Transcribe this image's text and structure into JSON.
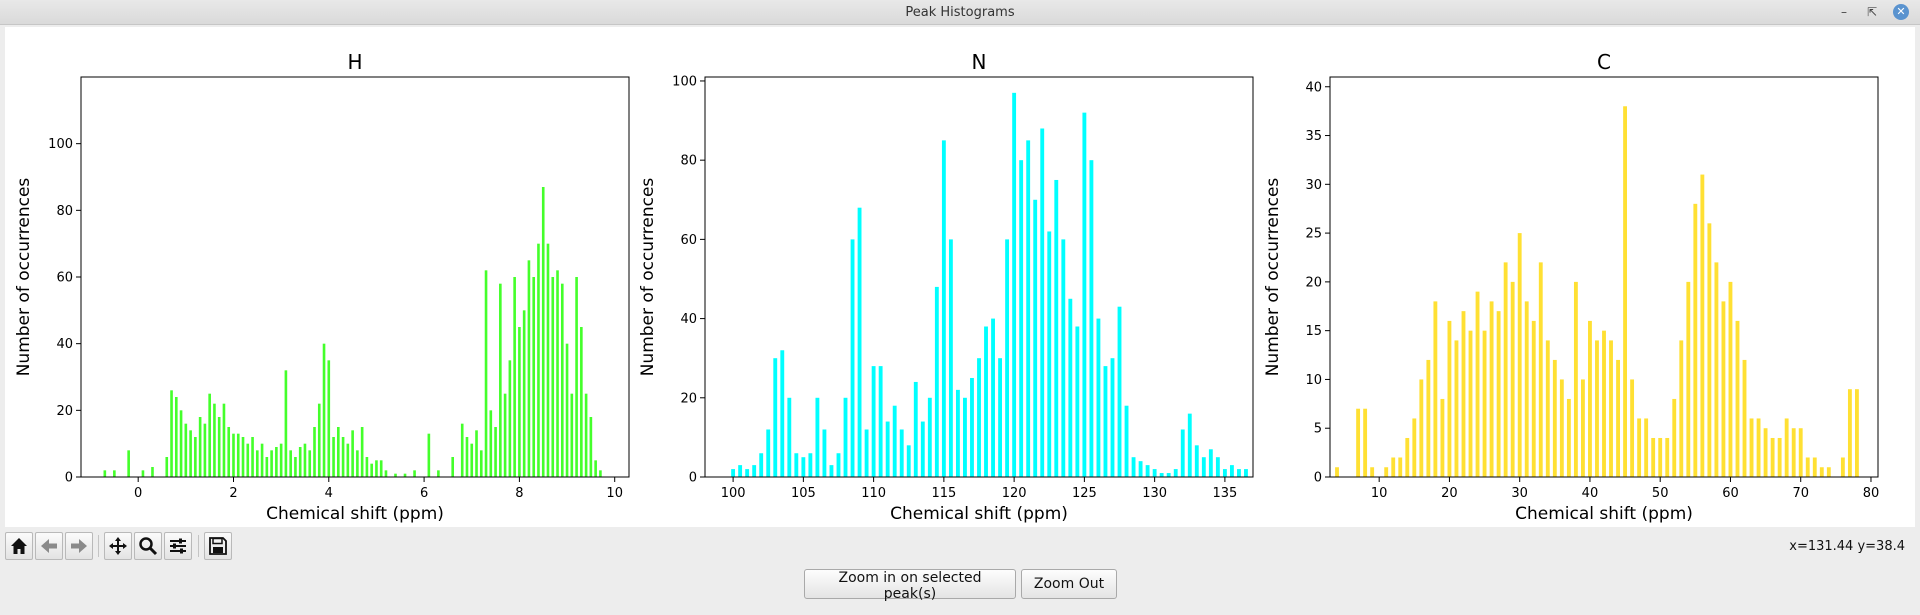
{
  "window": {
    "title": "Peak Histograms"
  },
  "toolbar": {
    "buttons": [
      "home-icon",
      "back-arrow-icon",
      "forward-arrow-icon",
      "pan-icon",
      "zoom-icon",
      "configure-subplots-icon",
      "save-icon"
    ],
    "coords": "x=131.44 y=38.4"
  },
  "actions": {
    "zoom_in_label": "Zoom in on selected peak(s)",
    "zoom_out_label": "Zoom Out"
  },
  "chart_data": [
    {
      "type": "bar",
      "title": "H",
      "xlabel": "Chemical shift (ppm)",
      "ylabel": "Number of occurrences",
      "color": "#44ff2b",
      "xlim": [
        -1.2,
        10.3
      ],
      "ylim": [
        0,
        120
      ],
      "xticks": [
        0,
        2,
        4,
        6,
        8,
        10
      ],
      "yticks": [
        0,
        20,
        40,
        60,
        80,
        100
      ],
      "grid": false,
      "x": [
        -0.7,
        -0.5,
        -0.2,
        0.1,
        0.3,
        0.6,
        0.7,
        0.8,
        0.9,
        1.0,
        1.1,
        1.2,
        1.3,
        1.4,
        1.5,
        1.6,
        1.7,
        1.8,
        1.9,
        2.0,
        2.1,
        2.2,
        2.3,
        2.4,
        2.5,
        2.6,
        2.7,
        2.8,
        2.9,
        3.0,
        3.1,
        3.2,
        3.3,
        3.4,
        3.5,
        3.6,
        3.7,
        3.8,
        3.9,
        4.0,
        4.1,
        4.2,
        4.3,
        4.4,
        4.5,
        4.6,
        4.7,
        4.8,
        4.9,
        5.0,
        5.1,
        5.2,
        5.4,
        5.6,
        5.8,
        6.1,
        6.3,
        6.6,
        6.8,
        6.9,
        7.0,
        7.1,
        7.2,
        7.3,
        7.4,
        7.5,
        7.6,
        7.7,
        7.8,
        7.9,
        8.0,
        8.1,
        8.2,
        8.3,
        8.4,
        8.5,
        8.6,
        8.7,
        8.8,
        8.9,
        9.0,
        9.1,
        9.2,
        9.3,
        9.4,
        9.5,
        9.6,
        9.7
      ],
      "values": [
        2,
        2,
        8,
        2,
        3,
        6,
        26,
        24,
        20,
        16,
        14,
        12,
        18,
        16,
        25,
        22,
        18,
        22,
        15,
        13,
        13,
        12,
        10,
        12,
        8,
        10,
        6,
        8,
        9,
        10,
        32,
        8,
        6,
        9,
        10,
        8,
        15,
        22,
        40,
        35,
        12,
        15,
        12,
        10,
        14,
        8,
        15,
        6,
        4,
        5,
        5,
        2,
        1,
        1,
        2,
        13,
        2,
        6,
        16,
        12,
        10,
        14,
        8,
        62,
        20,
        15,
        58,
        25,
        35,
        60,
        45,
        50,
        65,
        60,
        70,
        87,
        70,
        60,
        62,
        58,
        40,
        25,
        60,
        45,
        25,
        18,
        5,
        2
      ]
    },
    {
      "type": "bar",
      "title": "N",
      "xlabel": "Chemical shift (ppm)",
      "ylabel": "Number of occurrences",
      "color": "#00ffff",
      "xlim": [
        98,
        137
      ],
      "ylim": [
        0,
        101
      ],
      "xticks": [
        100,
        105,
        110,
        115,
        120,
        125,
        130,
        135
      ],
      "yticks": [
        0,
        20,
        40,
        60,
        80,
        100
      ],
      "grid": false,
      "x": [
        100.0,
        100.5,
        101.0,
        101.5,
        102.0,
        102.5,
        103.0,
        103.5,
        104.0,
        104.5,
        105.0,
        105.5,
        106.0,
        106.5,
        107.0,
        107.5,
        108.0,
        108.5,
        109.0,
        109.5,
        110.0,
        110.5,
        111.0,
        111.5,
        112.0,
        112.5,
        113.0,
        113.5,
        114.0,
        114.5,
        115.0,
        115.5,
        116.0,
        116.5,
        117.0,
        117.5,
        118.0,
        118.5,
        119.0,
        119.5,
        120.0,
        120.5,
        121.0,
        121.5,
        122.0,
        122.5,
        123.0,
        123.5,
        124.0,
        124.5,
        125.0,
        125.5,
        126.0,
        126.5,
        127.0,
        127.5,
        128.0,
        128.5,
        129.0,
        129.5,
        130.0,
        130.5,
        131.0,
        131.5,
        132.0,
        132.5,
        133.0,
        133.5,
        134.0,
        134.5,
        135.0,
        135.5,
        136.0,
        136.5
      ],
      "values": [
        2,
        3,
        2,
        3,
        6,
        12,
        30,
        32,
        20,
        6,
        5,
        6,
        20,
        12,
        3,
        6,
        20,
        60,
        68,
        12,
        28,
        28,
        14,
        18,
        12,
        8,
        24,
        14,
        20,
        48,
        85,
        60,
        22,
        20,
        25,
        30,
        38,
        40,
        30,
        60,
        97,
        80,
        85,
        70,
        88,
        62,
        75,
        60,
        45,
        38,
        92,
        80,
        40,
        28,
        30,
        43,
        18,
        5,
        4,
        3,
        2,
        1,
        1,
        2,
        12,
        16,
        8,
        5,
        7,
        5,
        2,
        3,
        2,
        2
      ]
    },
    {
      "type": "bar",
      "title": "C",
      "xlabel": "Chemical shift (ppm)",
      "ylabel": "Number of occurrences",
      "color": "#ffe033",
      "xlim": [
        3,
        81
      ],
      "ylim": [
        0,
        41
      ],
      "xticks": [
        10,
        20,
        30,
        40,
        50,
        60,
        70,
        80
      ],
      "yticks": [
        0,
        5,
        10,
        15,
        20,
        25,
        30,
        35,
        40
      ],
      "grid": false,
      "x": [
        4,
        7,
        8,
        9,
        11,
        12,
        13,
        14,
        15,
        16,
        17,
        18,
        19,
        20,
        21,
        22,
        23,
        24,
        25,
        26,
        27,
        28,
        29,
        30,
        31,
        32,
        33,
        34,
        35,
        36,
        37,
        38,
        39,
        40,
        41,
        42,
        43,
        44,
        45,
        46,
        47,
        48,
        49,
        50,
        51,
        52,
        53,
        54,
        55,
        56,
        57,
        58,
        59,
        60,
        61,
        62,
        63,
        64,
        65,
        66,
        67,
        68,
        69,
        70,
        71,
        72,
        73,
        74,
        76,
        77,
        78
      ],
      "values": [
        1,
        7,
        7,
        1,
        1,
        2,
        2,
        4,
        6,
        10,
        12,
        18,
        8,
        16,
        14,
        17,
        15,
        19,
        15,
        18,
        17,
        22,
        20,
        25,
        18,
        16,
        22,
        14,
        12,
        10,
        8,
        20,
        10,
        16,
        14,
        15,
        14,
        12,
        38,
        10,
        6,
        6,
        4,
        4,
        4,
        8,
        14,
        20,
        28,
        31,
        26,
        22,
        18,
        20,
        16,
        12,
        6,
        6,
        5,
        4,
        4,
        6,
        5,
        5,
        2,
        2,
        1,
        1,
        2,
        9,
        9
      ]
    }
  ]
}
